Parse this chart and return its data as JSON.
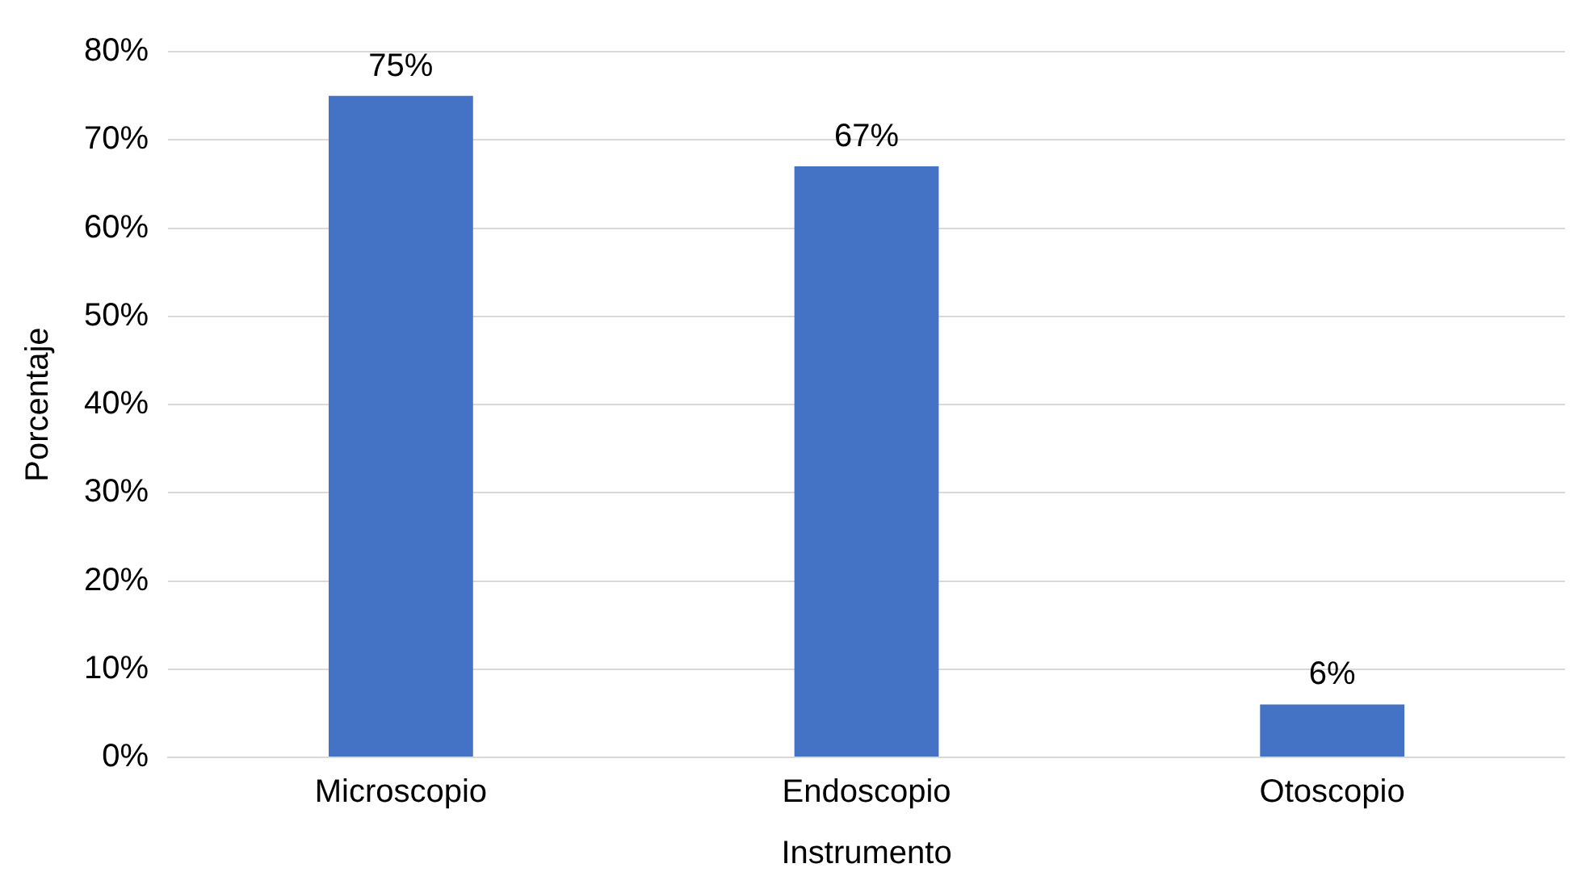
{
  "chart_data": {
    "type": "bar",
    "xlabel": "Instrumento",
    "ylabel": "Porcentaje",
    "categories": [
      "Microscopio",
      "Endoscopio",
      "Otoscopio"
    ],
    "values": [
      75,
      67,
      6
    ],
    "value_labels": [
      "75%",
      "67%",
      "6%"
    ],
    "color": "#4472c4",
    "ylim": [
      0,
      80
    ],
    "yticks": [
      {
        "value": 0,
        "label": "0%"
      },
      {
        "value": 10,
        "label": "10%"
      },
      {
        "value": 20,
        "label": "20%"
      },
      {
        "value": 30,
        "label": "30%"
      },
      {
        "value": 40,
        "label": "40%"
      },
      {
        "value": 50,
        "label": "50%"
      },
      {
        "value": 60,
        "label": "60%"
      },
      {
        "value": 70,
        "label": "70%"
      },
      {
        "value": 80,
        "label": "80%"
      }
    ],
    "grid": "y",
    "legend": false
  }
}
